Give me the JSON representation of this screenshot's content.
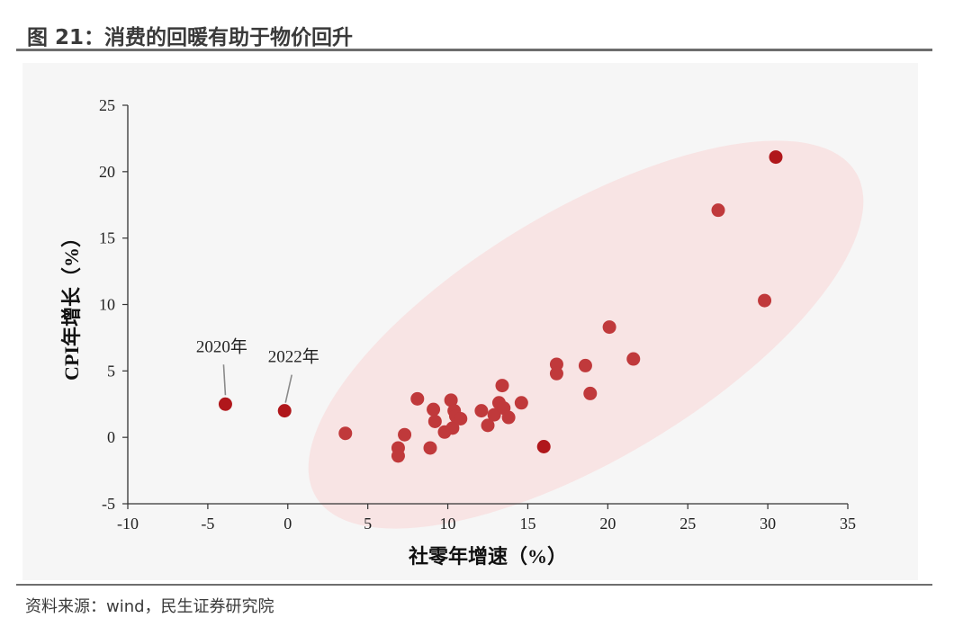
{
  "figure": {
    "title": "图 21：消费的回暖有助于物价回升",
    "source": "资料来源：wind，民生证券研究院"
  },
  "colors": {
    "point": "#c0393b",
    "highlight": "#b0171b",
    "ellipse": "#f8e4e4",
    "rule": "#6e6e6e"
  },
  "chart_data": {
    "type": "scatter",
    "title": "",
    "xlabel": "社零年增速（%）",
    "ylabel": "CPI年增长（%）",
    "xlim": [
      -10,
      35
    ],
    "ylim": [
      -5,
      25
    ],
    "xticks": [
      -10,
      -5,
      0,
      5,
      10,
      15,
      20,
      25,
      30,
      35
    ],
    "yticks": [
      -5,
      0,
      5,
      10,
      15,
      20,
      25
    ],
    "grid": false,
    "legend": "none",
    "series": [
      {
        "points": [
          [
            3.6,
            0.3
          ],
          [
            6.9,
            -0.8
          ],
          [
            6.9,
            -1.4
          ],
          [
            7.3,
            0.2
          ],
          [
            8.1,
            2.9
          ],
          [
            8.9,
            -0.8
          ],
          [
            9.1,
            2.1
          ],
          [
            9.2,
            1.2
          ],
          [
            9.8,
            0.4
          ],
          [
            10.2,
            2.8
          ],
          [
            10.3,
            0.7
          ],
          [
            10.4,
            2.0
          ],
          [
            10.5,
            1.6
          ],
          [
            10.8,
            1.4
          ],
          [
            12.1,
            2.0
          ],
          [
            12.5,
            0.9
          ],
          [
            12.9,
            1.7
          ],
          [
            13.2,
            2.6
          ],
          [
            13.4,
            3.9
          ],
          [
            13.5,
            2.2
          ],
          [
            13.8,
            1.5
          ],
          [
            14.6,
            2.6
          ],
          [
            16.8,
            5.5
          ],
          [
            16.8,
            4.8
          ],
          [
            18.6,
            5.4
          ],
          [
            18.9,
            3.3
          ],
          [
            20.1,
            8.3
          ],
          [
            21.6,
            5.9
          ],
          [
            26.9,
            17.1
          ],
          [
            29.8,
            10.3
          ]
        ]
      },
      {
        "points": [
          [
            -3.9,
            2.5
          ],
          [
            -0.2,
            2.0
          ],
          [
            16.0,
            -0.7
          ],
          [
            30.5,
            21.1
          ]
        ]
      }
    ],
    "annotations": [
      {
        "text": "2020年",
        "x": -3.9,
        "y": 2.5
      },
      {
        "text": "2022年",
        "x": -0.2,
        "y": 2.0
      }
    ]
  }
}
